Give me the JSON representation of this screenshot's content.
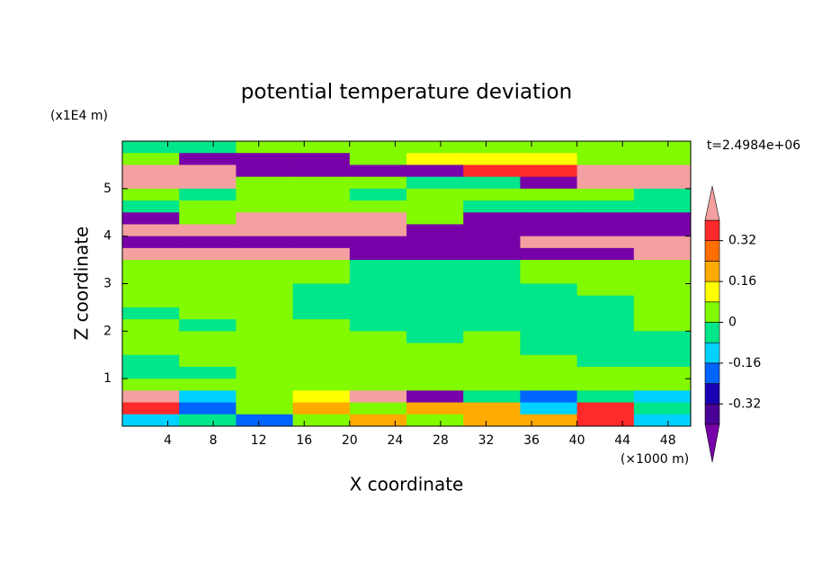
{
  "chart_data": {
    "type": "contour",
    "title": "potential temperature deviation",
    "x_label": "X coordinate",
    "y_label": "Z coordinate",
    "x_unit": "(×1000 m)",
    "y_unit": "(x1E4 m)",
    "time_label": "t=2.4984e+06",
    "xlim": [
      0,
      50
    ],
    "ylim": [
      0,
      6
    ],
    "xticks": [
      4,
      8,
      12,
      16,
      20,
      24,
      28,
      32,
      36,
      40,
      44,
      48
    ],
    "yticks": [
      1,
      2,
      3,
      4,
      5
    ],
    "x": [
      2.5,
      7.5,
      12.5,
      17.5,
      22.5,
      27.5,
      32.5,
      37.5,
      42.5,
      47.5
    ],
    "y": [
      5.875,
      5.625,
      5.375,
      5.125,
      4.875,
      4.625,
      4.375,
      4.125,
      3.875,
      3.625,
      3.375,
      3.125,
      2.875,
      2.625,
      2.375,
      2.125,
      1.875,
      1.625,
      1.375,
      1.125,
      0.875,
      0.625,
      0.375,
      0.125
    ],
    "z": [
      [
        -0.04,
        -0.04,
        0.04,
        0.04,
        0.04,
        0.04,
        0.04,
        0.04,
        0.04,
        0.04
      ],
      [
        0.04,
        -0.5,
        -0.5,
        -0.5,
        0.04,
        0.12,
        0.12,
        0.12,
        0.04,
        0.04
      ],
      [
        0.5,
        0.5,
        -0.5,
        -0.5,
        -0.5,
        -0.5,
        0.36,
        0.36,
        0.5,
        0.5
      ],
      [
        0.5,
        0.5,
        0.04,
        0.04,
        0.04,
        -0.04,
        -0.04,
        -0.5,
        0.5,
        0.5
      ],
      [
        0.04,
        -0.04,
        0.04,
        0.04,
        -0.04,
        0.04,
        0.04,
        0.04,
        0.04,
        -0.04
      ],
      [
        -0.04,
        0.04,
        0.04,
        0.04,
        0.04,
        0.04,
        -0.04,
        -0.04,
        -0.04,
        -0.04
      ],
      [
        -0.5,
        0.04,
        0.5,
        0.5,
        0.5,
        0.04,
        -0.5,
        -0.5,
        -0.5,
        -0.5
      ],
      [
        0.5,
        0.5,
        0.5,
        0.5,
        0.5,
        -0.5,
        -0.5,
        -0.5,
        -0.5,
        -0.5
      ],
      [
        -0.5,
        -0.5,
        -0.5,
        -0.5,
        -0.5,
        -0.5,
        -0.5,
        0.5,
        0.5,
        0.5
      ],
      [
        0.5,
        0.5,
        0.5,
        0.5,
        -0.5,
        -0.5,
        -0.5,
        -0.5,
        -0.5,
        0.5
      ],
      [
        0.04,
        0.04,
        0.04,
        0.04,
        -0.04,
        -0.04,
        -0.04,
        0.04,
        0.04,
        0.04
      ],
      [
        0.04,
        0.04,
        0.04,
        0.04,
        -0.04,
        -0.04,
        -0.04,
        0.04,
        0.04,
        0.04
      ],
      [
        0.04,
        0.04,
        0.04,
        -0.04,
        -0.04,
        -0.04,
        -0.04,
        -0.04,
        0.04,
        0.04
      ],
      [
        0.04,
        0.04,
        0.04,
        -0.04,
        -0.04,
        -0.04,
        -0.04,
        -0.04,
        -0.04,
        0.04
      ],
      [
        -0.04,
        0.04,
        0.04,
        -0.04,
        -0.04,
        -0.04,
        -0.04,
        -0.04,
        -0.04,
        0.04
      ],
      [
        0.04,
        -0.04,
        0.04,
        0.04,
        -0.04,
        -0.04,
        -0.04,
        -0.04,
        -0.04,
        0.04
      ],
      [
        0.04,
        0.04,
        0.04,
        0.04,
        0.04,
        -0.04,
        0.04,
        -0.04,
        -0.04,
        -0.04
      ],
      [
        0.04,
        0.04,
        0.04,
        0.04,
        0.04,
        0.04,
        0.04,
        -0.04,
        -0.04,
        -0.04
      ],
      [
        -0.04,
        0.04,
        0.04,
        0.04,
        0.04,
        0.04,
        0.04,
        0.04,
        -0.04,
        -0.04
      ],
      [
        -0.04,
        -0.04,
        0.04,
        0.04,
        0.04,
        0.04,
        0.04,
        0.04,
        0.04,
        0.04
      ],
      [
        0.04,
        0.04,
        0.04,
        0.04,
        0.04,
        0.04,
        0.04,
        0.04,
        0.04,
        0.04
      ],
      [
        0.5,
        -0.12,
        0.04,
        0.12,
        0.5,
        -0.5,
        -0.04,
        -0.2,
        -0.04,
        -0.12
      ],
      [
        0.36,
        -0.2,
        0.04,
        0.2,
        0.04,
        0.2,
        0.2,
        -0.12,
        0.36,
        -0.04
      ],
      [
        -0.12,
        -0.04,
        -0.2,
        0.04,
        0.2,
        0.04,
        0.2,
        0.2,
        0.36,
        -0.12
      ]
    ],
    "levels": [
      -0.4,
      -0.32,
      -0.24,
      -0.16,
      -0.08,
      0,
      0.08,
      0.16,
      0.24,
      0.32,
      0.4
    ],
    "colors": [
      "#7800a8",
      "#4a0096",
      "#1a00b4",
      "#0064ff",
      "#00d2ff",
      "#00e68a",
      "#82fa00",
      "#ffff00",
      "#ffaa00",
      "#ff6e00",
      "#ff2a2a",
      "#f4a0a0"
    ],
    "colorbar_ticks": [
      0.32,
      0.16,
      0,
      -0.16,
      -0.32
    ]
  }
}
